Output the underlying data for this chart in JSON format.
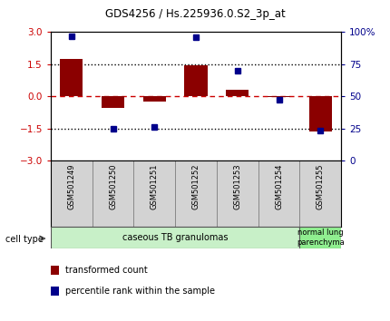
{
  "title": "GDS4256 / Hs.225936.0.S2_3p_at",
  "samples": [
    "GSM501249",
    "GSM501250",
    "GSM501251",
    "GSM501252",
    "GSM501253",
    "GSM501254",
    "GSM501255"
  ],
  "transformed_count": [
    1.75,
    -0.55,
    -0.25,
    1.45,
    0.3,
    -0.05,
    -1.65
  ],
  "percentile_rank": [
    97,
    25,
    26,
    96,
    70,
    47,
    23
  ],
  "ylim_left": [
    -3,
    3
  ],
  "ylim_right": [
    0,
    100
  ],
  "yticks_left": [
    -3,
    -1.5,
    0,
    1.5,
    3
  ],
  "yticks_right": [
    0,
    25,
    50,
    75,
    100
  ],
  "bar_color": "#8B0000",
  "dot_color": "#00008B",
  "hline_color": "#CC0000",
  "dotted_line_color": "#000000",
  "group1_label": "caseous TB granulomas",
  "group1_n": 6,
  "group1_color": "#c8f0c8",
  "group2_label": "normal lung\nparenchyma",
  "group2_n": 1,
  "group2_color": "#90ee90",
  "legend_entries": [
    {
      "color": "#8B0000",
      "label": "transformed count"
    },
    {
      "color": "#00008B",
      "label": "percentile rank within the sample"
    }
  ],
  "cell_type_label": "cell type",
  "background_color": "#ffffff"
}
